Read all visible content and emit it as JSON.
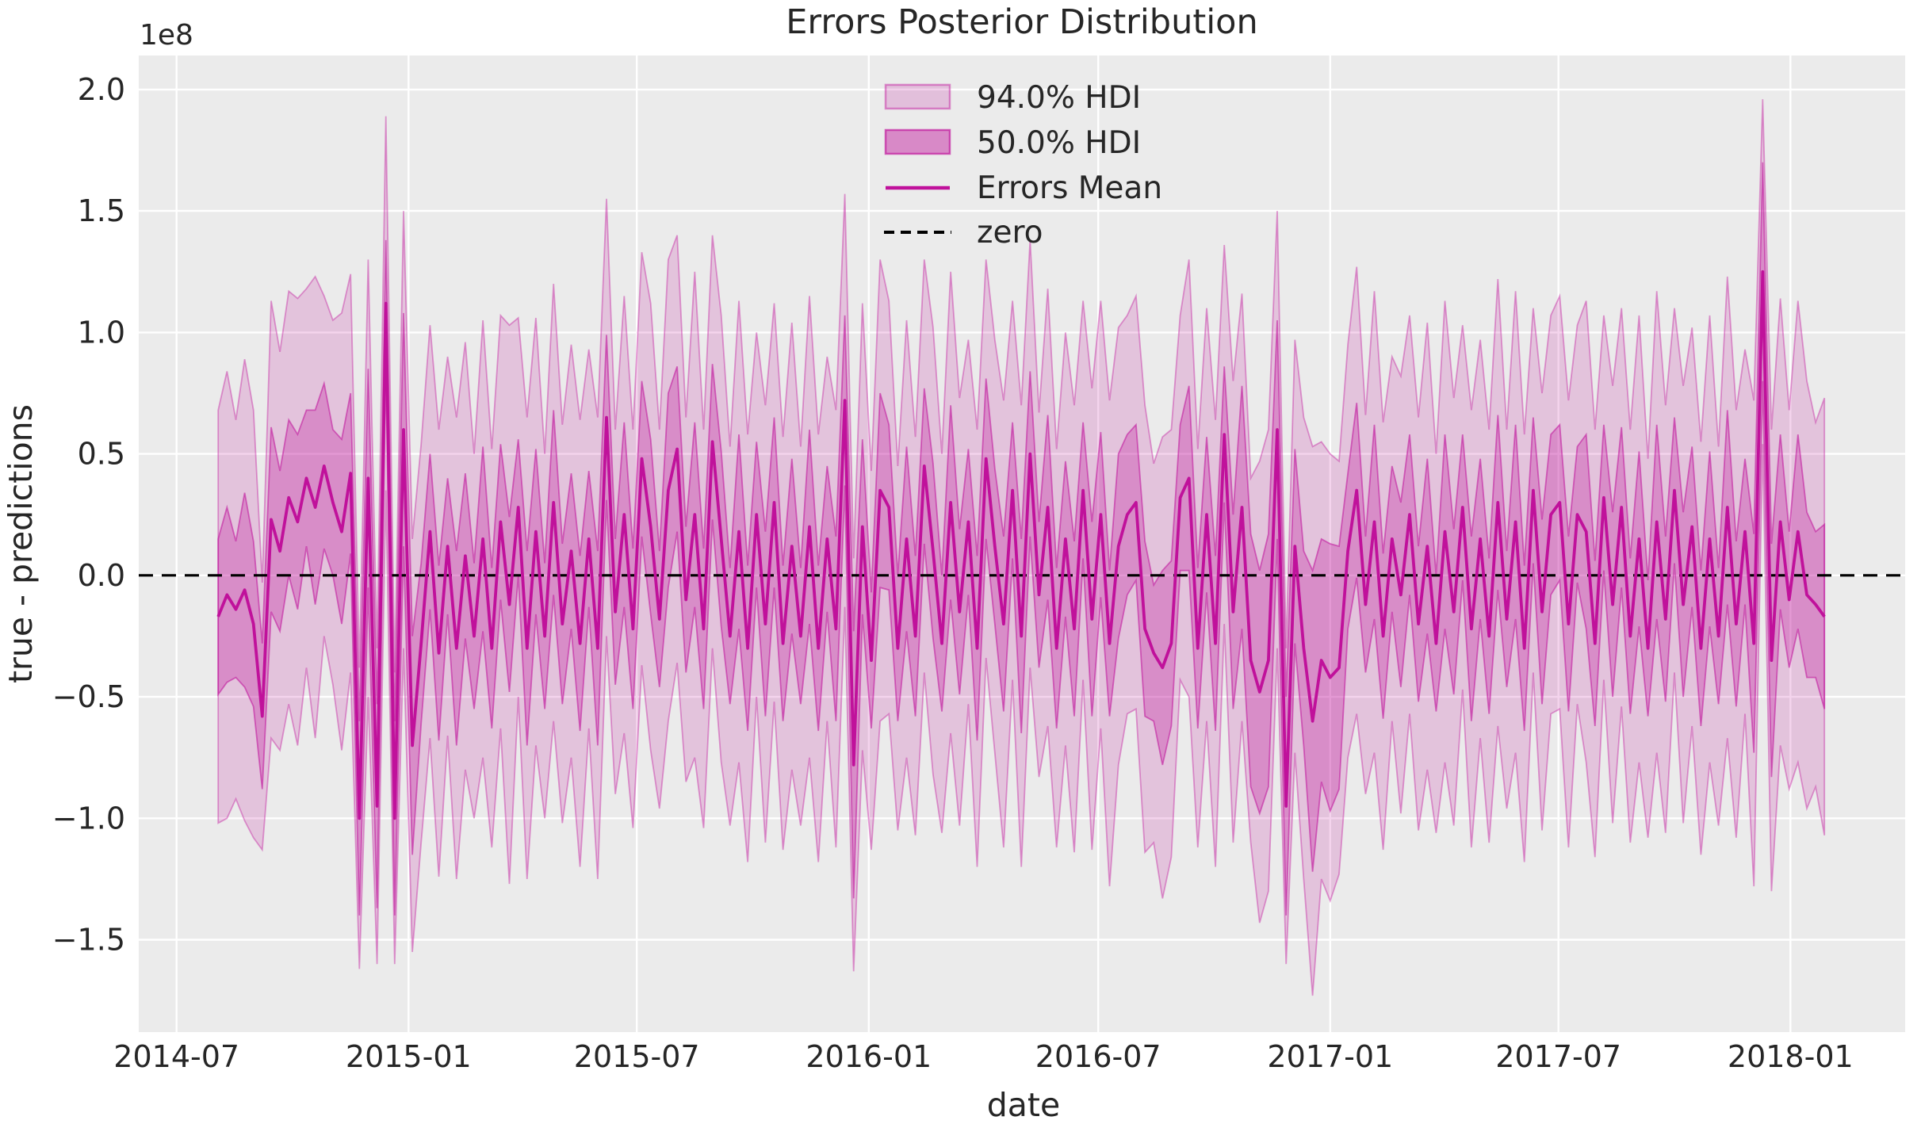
{
  "colors": {
    "primary": "#c0119b",
    "hdi94_fill": "rgba(192,17,155,0.18)",
    "hdi94_edge": "rgba(192,17,155,0.40)",
    "hdi50_fill": "rgba(192,17,155,0.30)",
    "hdi50_edge": "rgba(192,17,155,0.55)",
    "legend94_fill": "rgba(192,17,155,0.20)",
    "legend94_edge": "rgba(192,17,155,0.45)",
    "legend50_fill": "rgba(192,17,155,0.45)",
    "legend50_edge": "rgba(192,17,155,0.65)",
    "zero_line": "#000000",
    "axes_background": "#ebebeb",
    "grid": "#ffffff",
    "text": "#262626"
  },
  "legend": {
    "items": [
      {
        "label": "94.0% HDI",
        "type": "patch"
      },
      {
        "label": "50.0% HDI",
        "type": "patch"
      },
      {
        "label": "Errors Mean",
        "type": "line"
      },
      {
        "label": "zero",
        "type": "dashed_line"
      }
    ]
  },
  "chart_data": {
    "type": "line",
    "title": "Errors Posterior Distribution",
    "xlabel": "date",
    "ylabel": "true - predictions",
    "y_offset_text": "1e8",
    "values_unit": "1e8",
    "grid": true,
    "legend_position": "upper center",
    "x_tick_labels": [
      "2014-07",
      "2015-01",
      "2015-07",
      "2016-01",
      "2016-07",
      "2017-01",
      "2017-07",
      "2018-01"
    ],
    "x_tick_dates": [
      "2014-07-01",
      "2015-01-01",
      "2015-07-01",
      "2016-01-01",
      "2016-07-01",
      "2017-01-01",
      "2017-07-01",
      "2018-01-01"
    ],
    "y_tick_labels": [
      "2.0",
      "1.5",
      "1.0",
      "0.5",
      "0.0",
      "−0.5",
      "−1.0",
      "−1.5"
    ],
    "y_tick_values": [
      2.0,
      1.5,
      1.0,
      0.5,
      0.0,
      -0.5,
      -1.0,
      -1.5
    ],
    "ylim": [
      -1.88,
      2.14
    ],
    "xlim_dates": [
      "2014-06-01",
      "2018-04-02"
    ],
    "x_start": "2014-08-03",
    "x_step_days": 7,
    "n_points": 183,
    "zero_line_y": 0,
    "series": [
      {
        "name": "Errors Mean",
        "values": [
          -0.17,
          -0.08,
          -0.14,
          -0.06,
          -0.2,
          -0.58,
          0.23,
          0.1,
          0.32,
          0.22,
          0.4,
          0.28,
          0.45,
          0.3,
          0.18,
          0.42,
          -1.0,
          0.4,
          -0.95,
          1.12,
          -1.0,
          0.6,
          -0.7,
          -0.28,
          0.18,
          -0.32,
          0.12,
          -0.3,
          0.08,
          -0.25,
          0.15,
          -0.3,
          0.22,
          -0.12,
          0.28,
          -0.3,
          0.18,
          -0.25,
          0.3,
          -0.2,
          0.1,
          -0.28,
          0.15,
          -0.3,
          0.65,
          -0.15,
          0.25,
          -0.22,
          0.48,
          0.2,
          -0.18,
          0.35,
          0.52,
          -0.1,
          0.25,
          -0.22,
          0.55,
          0.15,
          -0.25,
          0.18,
          -0.3,
          0.25,
          -0.2,
          0.3,
          -0.28,
          0.12,
          -0.25,
          0.2,
          -0.3,
          0.15,
          -0.22,
          0.72,
          -0.78,
          0.2,
          -0.35,
          0.35,
          0.28,
          -0.3,
          0.15,
          -0.25,
          0.45,
          0.1,
          -0.28,
          0.3,
          -0.15,
          0.22,
          -0.3,
          0.48,
          0.12,
          -0.2,
          0.35,
          -0.25,
          0.5,
          -0.08,
          0.28,
          -0.3,
          0.15,
          -0.22,
          0.35,
          -0.18,
          0.25,
          -0.28,
          0.12,
          0.25,
          0.3,
          -0.22,
          -0.32,
          -0.38,
          -0.28,
          0.32,
          0.4,
          -0.3,
          0.25,
          -0.28,
          0.58,
          -0.15,
          0.28,
          -0.35,
          -0.48,
          -0.35,
          0.6,
          -0.95,
          0.12,
          -0.3,
          -0.6,
          -0.35,
          -0.42,
          -0.38,
          0.1,
          0.35,
          -0.12,
          0.22,
          -0.25,
          0.15,
          -0.08,
          0.25,
          -0.2,
          0.12,
          -0.28,
          0.18,
          -0.15,
          0.28,
          -0.22,
          0.15,
          -0.25,
          0.3,
          -0.18,
          0.22,
          -0.3,
          0.35,
          -0.15,
          0.25,
          0.3,
          -0.2,
          0.25,
          0.18,
          -0.28,
          0.32,
          -0.12,
          0.28,
          -0.25,
          0.15,
          -0.3,
          0.22,
          -0.18,
          0.35,
          -0.12,
          0.2,
          -0.3,
          0.15,
          -0.25,
          0.28,
          -0.2,
          0.18,
          -0.28,
          1.25,
          -0.35,
          0.22,
          -0.1,
          0.18,
          -0.08,
          -0.12,
          -0.17
        ]
      }
    ],
    "bands": [
      {
        "name": "94.0% HDI",
        "halfwidths": [
          0.85,
          0.92,
          0.78,
          0.95,
          0.88,
          0.55,
          0.9,
          0.82,
          0.85,
          0.92,
          0.78,
          0.95,
          0.7,
          0.75,
          0.9,
          0.82,
          0.62,
          0.9,
          0.65,
          0.77,
          0.6,
          0.9,
          0.85,
          0.82,
          0.85,
          0.92,
          0.78,
          0.95,
          0.88,
          0.75,
          0.9,
          0.82,
          0.85,
          1.15,
          0.78,
          0.95,
          0.88,
          0.75,
          0.9,
          0.82,
          0.85,
          0.92,
          0.78,
          0.95,
          0.9,
          0.75,
          0.9,
          0.82,
          0.85,
          0.92,
          0.78,
          0.95,
          0.88,
          0.75,
          1.0,
          0.82,
          0.85,
          0.92,
          0.78,
          0.95,
          0.88,
          0.75,
          0.9,
          0.82,
          0.85,
          0.92,
          0.78,
          0.95,
          0.88,
          0.75,
          0.9,
          0.85,
          0.85,
          0.92,
          0.78,
          0.95,
          0.85,
          0.75,
          0.9,
          0.82,
          0.85,
          0.92,
          0.78,
          0.95,
          0.88,
          0.75,
          0.9,
          0.82,
          0.85,
          0.92,
          0.78,
          0.95,
          0.88,
          0.75,
          0.9,
          0.82,
          0.85,
          0.92,
          0.78,
          0.95,
          0.88,
          1.0,
          0.9,
          0.82,
          0.85,
          0.92,
          0.78,
          0.95,
          0.88,
          0.75,
          0.9,
          0.82,
          0.85,
          0.92,
          0.78,
          0.95,
          0.88,
          0.75,
          0.95,
          0.95,
          0.9,
          0.65,
          0.85,
          0.95,
          1.13,
          0.9,
          0.92,
          0.85,
          0.85,
          0.92,
          0.78,
          0.95,
          0.88,
          0.75,
          0.9,
          0.82,
          0.85,
          0.92,
          0.78,
          0.95,
          0.88,
          0.75,
          0.9,
          0.82,
          0.85,
          0.92,
          0.78,
          0.95,
          0.88,
          0.75,
          0.9,
          0.82,
          0.85,
          0.92,
          0.78,
          0.95,
          0.88,
          0.75,
          0.9,
          0.82,
          0.85,
          0.92,
          0.78,
          0.95,
          0.88,
          0.75,
          0.9,
          0.82,
          0.85,
          0.92,
          0.78,
          0.95,
          0.88,
          0.75,
          1.0,
          0.71,
          0.95,
          0.92,
          0.78,
          0.95,
          0.88,
          0.75,
          0.9
        ]
      },
      {
        "name": "50.0% HDI",
        "halfwidths": [
          0.32,
          0.36,
          0.28,
          0.4,
          0.34,
          0.3,
          0.38,
          0.33,
          0.32,
          0.36,
          0.28,
          0.4,
          0.34,
          0.3,
          0.38,
          0.33,
          0.4,
          0.45,
          0.42,
          0.26,
          0.4,
          0.48,
          0.45,
          0.33,
          0.32,
          0.36,
          0.28,
          0.4,
          0.34,
          0.3,
          0.38,
          0.33,
          0.32,
          0.36,
          0.28,
          0.4,
          0.34,
          0.3,
          0.38,
          0.33,
          0.32,
          0.36,
          0.28,
          0.4,
          0.34,
          0.3,
          0.38,
          0.33,
          0.32,
          0.36,
          0.28,
          0.4,
          0.34,
          0.3,
          0.38,
          0.33,
          0.32,
          0.36,
          0.28,
          0.4,
          0.34,
          0.3,
          0.38,
          0.35,
          0.32,
          0.36,
          0.28,
          0.4,
          0.34,
          0.3,
          0.38,
          0.35,
          0.55,
          0.36,
          0.28,
          0.4,
          0.34,
          0.3,
          0.38,
          0.33,
          0.32,
          0.36,
          0.28,
          0.4,
          0.34,
          0.3,
          0.38,
          0.33,
          0.32,
          0.36,
          0.28,
          0.4,
          0.34,
          0.3,
          0.38,
          0.33,
          0.32,
          0.36,
          0.28,
          0.4,
          0.34,
          0.3,
          0.38,
          0.33,
          0.32,
          0.36,
          0.28,
          0.4,
          0.34,
          0.3,
          0.38,
          0.33,
          0.32,
          0.36,
          0.28,
          0.4,
          0.5,
          0.52,
          0.5,
          0.52,
          0.45,
          0.45,
          0.4,
          0.4,
          0.62,
          0.5,
          0.55,
          0.5,
          0.32,
          0.36,
          0.28,
          0.4,
          0.34,
          0.3,
          0.38,
          0.33,
          0.32,
          0.36,
          0.28,
          0.4,
          0.34,
          0.3,
          0.38,
          0.33,
          0.32,
          0.36,
          0.28,
          0.4,
          0.34,
          0.3,
          0.38,
          0.33,
          0.32,
          0.36,
          0.28,
          0.4,
          0.34,
          0.3,
          0.38,
          0.33,
          0.32,
          0.36,
          0.28,
          0.4,
          0.34,
          0.3,
          0.38,
          0.33,
          0.32,
          0.36,
          0.28,
          0.4,
          0.34,
          0.3,
          0.45,
          0.45,
          0.48,
          0.36,
          0.28,
          0.4,
          0.34,
          0.3,
          0.38
        ]
      }
    ]
  }
}
